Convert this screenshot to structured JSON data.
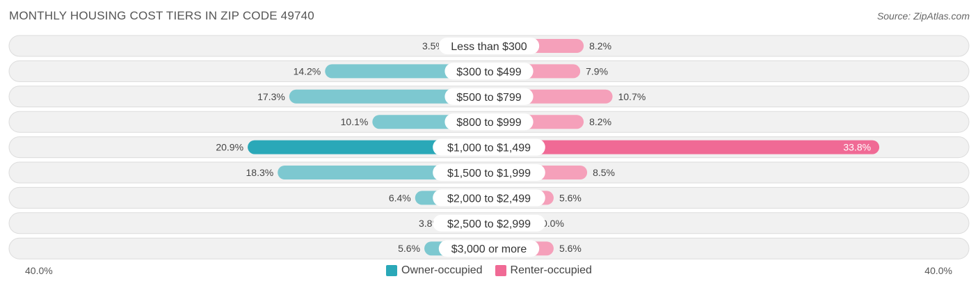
{
  "chart_data": {
    "type": "bar",
    "title": "MONTHLY HOUSING COST TIERS IN ZIP CODE 49740",
    "source": "Source: ZipAtlas.com",
    "categories": [
      "Less than $300",
      "$300 to $499",
      "$500 to $799",
      "$800 to $999",
      "$1,000 to $1,499",
      "$1,500 to $1,999",
      "$2,000 to $2,499",
      "$2,500 to $2,999",
      "$3,000 or more"
    ],
    "series": [
      {
        "name": "Owner-occupied",
        "values": [
          3.5,
          14.2,
          17.3,
          10.1,
          20.9,
          18.3,
          6.4,
          3.8,
          5.6
        ],
        "labels": [
          "3.5%",
          "14.2%",
          "17.3%",
          "10.1%",
          "20.9%",
          "18.3%",
          "6.4%",
          "3.8%",
          "5.6%"
        ]
      },
      {
        "name": "Renter-occupied",
        "values": [
          8.2,
          7.9,
          10.7,
          8.2,
          33.8,
          8.5,
          5.6,
          0.0,
          5.6
        ],
        "labels": [
          "8.2%",
          "7.9%",
          "10.7%",
          "8.2%",
          "33.8%",
          "8.5%",
          "5.6%",
          "0.0%",
          "5.6%"
        ]
      }
    ],
    "axis_min_label": "40.0%",
    "axis_max_label": "40.0%",
    "xlim": [
      -40,
      40
    ],
    "legend_position": "bottom-center",
    "colors": {
      "owner": "#7dc8d0",
      "owner_strong": "#2aa8b8",
      "renter": "#f5a0ba",
      "renter_strong": "#f06a95",
      "row_bg": "#f1f1f1",
      "row_border": "#dcdcdc"
    }
  }
}
